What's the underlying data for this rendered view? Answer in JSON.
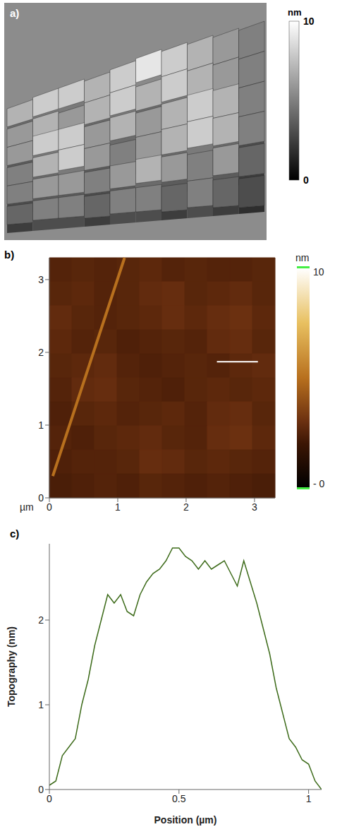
{
  "chart_data": [
    {
      "type": "surface3d",
      "panel_label": "a)",
      "colorbar": {
        "label": "nm",
        "range": [
          0,
          10
        ],
        "ticks": [
          10,
          0
        ]
      },
      "z": [
        [
          7,
          8,
          8,
          7,
          8,
          9,
          8,
          7,
          6,
          5
        ],
        [
          6,
          7,
          6,
          7,
          8,
          7,
          8,
          7,
          6,
          5
        ],
        [
          6,
          8,
          8,
          6,
          7,
          6,
          7,
          8,
          7,
          5
        ],
        [
          5,
          7,
          8,
          6,
          5,
          6,
          7,
          8,
          7,
          5
        ],
        [
          5,
          6,
          6,
          5,
          6,
          7,
          6,
          5,
          6,
          4
        ],
        [
          4,
          5,
          5,
          4,
          5,
          5,
          4,
          5,
          4,
          3
        ]
      ]
    },
    {
      "type": "heatmap",
      "panel_label": "b)",
      "x_label": "µm",
      "xlim": [
        0,
        3.3
      ],
      "ylim": [
        0,
        3.3
      ],
      "xticks": [
        0,
        1,
        2,
        3
      ],
      "yticks": [
        0,
        1,
        2,
        3
      ],
      "colorbar": {
        "label": "nm",
        "range": [
          0,
          10
        ],
        "ticks": [
          10,
          {
            "value": 0,
            "label": "- 0"
          }
        ]
      },
      "z": [
        [
          2.5,
          2.6,
          2.5,
          2.6,
          2.7,
          2.5,
          2.6,
          2.5,
          2.5,
          2.6
        ],
        [
          2.6,
          2.7,
          2.5,
          2.6,
          2.8,
          2.9,
          2.6,
          2.7,
          2.8,
          2.6
        ],
        [
          2.8,
          2.6,
          2.5,
          2.6,
          2.7,
          2.9,
          2.7,
          2.9,
          3.0,
          2.7
        ],
        [
          2.7,
          2.5,
          2.6,
          2.4,
          2.5,
          2.6,
          2.5,
          2.8,
          2.9,
          2.6
        ],
        [
          2.6,
          2.7,
          2.8,
          2.5,
          2.4,
          2.5,
          2.6,
          2.5,
          2.7,
          2.8
        ],
        [
          2.5,
          2.8,
          2.9,
          2.6,
          2.5,
          2.4,
          2.6,
          2.7,
          2.6,
          2.7
        ],
        [
          2.4,
          2.6,
          2.7,
          2.5,
          2.6,
          2.7,
          2.5,
          2.8,
          2.9,
          2.6
        ],
        [
          2.5,
          2.4,
          2.6,
          2.7,
          2.8,
          2.6,
          2.5,
          2.9,
          3.0,
          2.7
        ],
        [
          2.4,
          2.5,
          2.5,
          2.6,
          2.9,
          2.8,
          2.6,
          2.7,
          2.6,
          2.5
        ],
        [
          2.3,
          2.4,
          2.5,
          2.4,
          2.6,
          2.5,
          2.4,
          2.5,
          2.4,
          2.3
        ]
      ],
      "ridge": {
        "x": [
          0.05,
          1.1
        ],
        "y": [
          0.3,
          3.3
        ],
        "height": 5
      },
      "profile_line": {
        "x": [
          2.45,
          3.05
        ],
        "y": [
          1.87,
          1.87
        ],
        "color": "#ffffff"
      }
    },
    {
      "type": "line",
      "panel_label": "c)",
      "x_label": "Position (µm)",
      "y_label": "Topography (nm)",
      "color": "#3d6b1a",
      "xlim": [
        0,
        1.05
      ],
      "ylim": [
        0,
        2.9
      ],
      "xticks": [
        0,
        0.5,
        1
      ],
      "yticks": [
        0,
        1,
        2
      ],
      "x": [
        0,
        0.025,
        0.05,
        0.075,
        0.1,
        0.125,
        0.15,
        0.175,
        0.2,
        0.225,
        0.25,
        0.275,
        0.3,
        0.325,
        0.35,
        0.375,
        0.4,
        0.425,
        0.45,
        0.475,
        0.5,
        0.525,
        0.55,
        0.575,
        0.6,
        0.625,
        0.65,
        0.675,
        0.7,
        0.725,
        0.75,
        0.775,
        0.8,
        0.825,
        0.85,
        0.875,
        0.9,
        0.925,
        0.95,
        0.975,
        1.0,
        1.025,
        1.05
      ],
      "values": [
        0.05,
        0.1,
        0.4,
        0.5,
        0.6,
        1.0,
        1.3,
        1.7,
        2.0,
        2.3,
        2.2,
        2.3,
        2.1,
        2.05,
        2.3,
        2.45,
        2.55,
        2.6,
        2.7,
        2.85,
        2.85,
        2.75,
        2.7,
        2.6,
        2.7,
        2.6,
        2.65,
        2.7,
        2.55,
        2.4,
        2.7,
        2.45,
        2.2,
        1.9,
        1.6,
        1.2,
        0.9,
        0.6,
        0.5,
        0.35,
        0.3,
        0.1,
        0.0
      ]
    }
  ]
}
